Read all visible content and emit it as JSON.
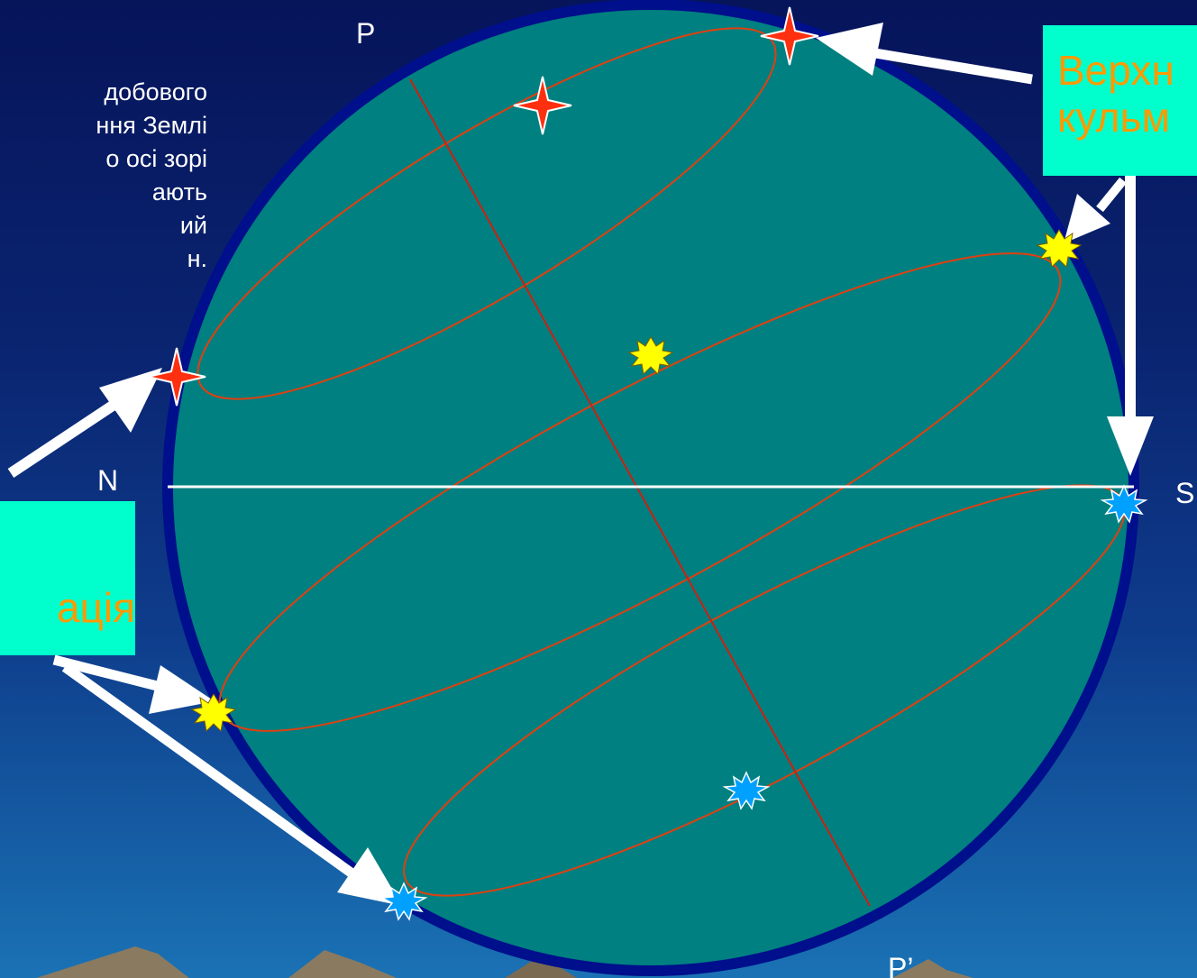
{
  "labels": {
    "pole_north": "P",
    "pole_south": "P’",
    "point_north": "N",
    "point_south": "S"
  },
  "left_text": "добового\nння Землі\nо осі зорі\nають\nий\nн.",
  "box_top_text": "Верхн\nкульм",
  "box_bottom_text": "ація",
  "colors": {
    "sphere_fill": "#008080",
    "sphere_rim": "#000f8c",
    "orbit_line": "#e04010",
    "axis_line": "#cc2010",
    "horizon_line": "#ffffff",
    "box_bg": "#00ffcc",
    "box_text": "#ff9900",
    "star_red": "#ff3010",
    "star_yellow": "#ffff00",
    "star_blue": "#00a0ff"
  }
}
